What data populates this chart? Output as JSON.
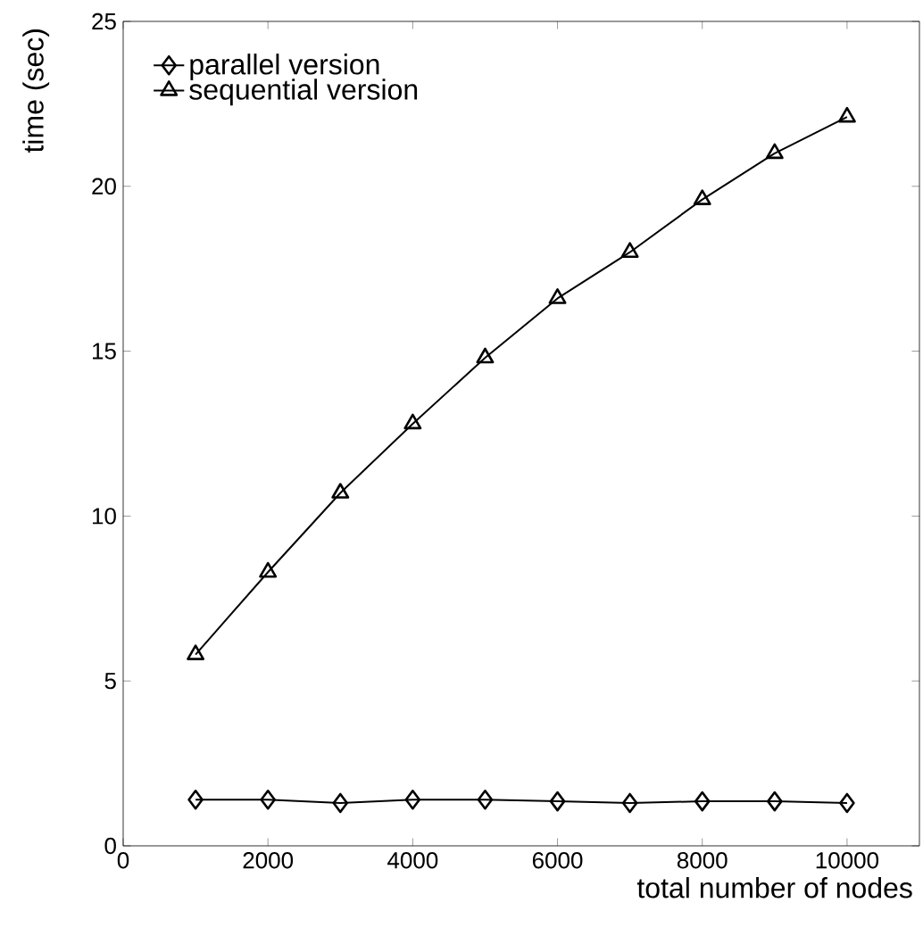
{
  "chart_data": {
    "type": "line",
    "xlabel": "total number of nodes",
    "ylabel": "time (sec)",
    "x": [
      1000,
      2000,
      3000,
      4000,
      5000,
      6000,
      7000,
      8000,
      9000,
      10000
    ],
    "series": [
      {
        "name": "parallel version",
        "color": "#000000",
        "marker": "diamond",
        "values": [
          1.4,
          1.4,
          1.3,
          1.4,
          1.4,
          1.35,
          1.3,
          1.35,
          1.35,
          1.3
        ]
      },
      {
        "name": "sequential version",
        "color": "#000000",
        "marker": "triangle",
        "values": [
          5.8,
          8.3,
          10.7,
          12.8,
          14.8,
          16.6,
          18.0,
          19.6,
          21.0,
          22.1
        ]
      }
    ],
    "xlim": [
      0,
      11000
    ],
    "ylim": [
      0,
      25
    ],
    "xticks": [
      0,
      2000,
      4000,
      6000,
      8000,
      10000
    ],
    "yticks": [
      0,
      5,
      10,
      15,
      20,
      25
    ],
    "grid": false,
    "legend": "top left",
    "line_style": "solid"
  }
}
